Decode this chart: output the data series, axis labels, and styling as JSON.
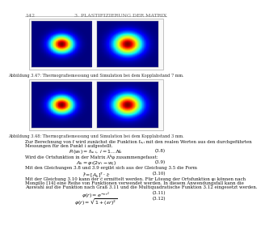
{
  "page_number": "142",
  "chapter_title": "3. PLASTIFIZIERUNG DER MATRIX",
  "fig1_caption": "Abbildung 3.47: Thermografiemessung und Simulation bei dem Kopplabstand 7 mm.",
  "fig2_caption": "Abbildung 3.48: Thermografiemessung und Simulation bei dem Kopplabstand 3 mm.",
  "para1_line1": "Zur Berechnung von f wird zunächst die Funktion fᵤ,ᵢ mit den realen Werten aus den durchgeführten",
  "para1_line2": "Messungen für den Punkt i aufgestellt.",
  "eq1_num": "(3.8)",
  "eq1_desc": "Wird die Ortsfunktion in der Matrix Aᵏφ zusammengefasst:",
  "eq2_num": "(3.9)",
  "eq2_desc": "Mit den Gleichungen 3.8 und 3.9 ergibt sich aus der Gleichung 3.5 die Form",
  "eq3_num": "(3.10)",
  "para2_line1": "Mit der Gleichung 3.10 kann der c̃ ermittelt werden. Für Lösung der Ortsfunktion φₗ können nach",
  "para2_line2": "Mongillo [14] eine Reihe von Funktionen verwendet werden. In diesem Anwendungsfall kann die",
  "para2_line3": "Auswahl auf die Funktion nach Graß 3.11 und die Multiquadratische Funktion 3.12 eingesetzt werden.",
  "eq4_num": "(3.11)",
  "eq5_num": "(3.12)",
  "bg_color": "#ffffff",
  "text_color": "#111111",
  "header_color": "#666666"
}
